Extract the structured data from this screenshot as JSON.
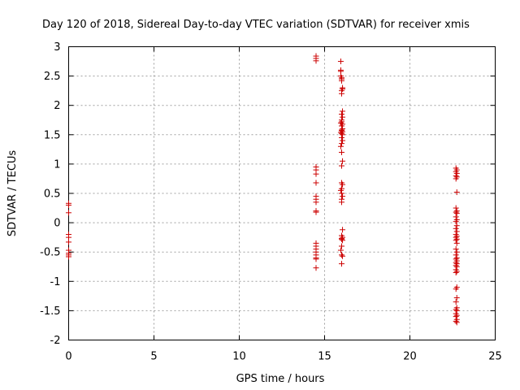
{
  "chart_data": {
    "type": "scatter",
    "title": "Day 120 of 2018, Sidereal Day-to-day VTEC variation (SDTVAR) for receiver xmis",
    "xlabel": "GPS time / hours",
    "ylabel": "SDTVAR / TECUs",
    "xlim": [
      0,
      25
    ],
    "ylim": [
      -2,
      3
    ],
    "xticks": [
      0,
      5,
      10,
      15,
      20,
      25
    ],
    "yticks": [
      -2,
      -1.5,
      -1,
      -0.5,
      0,
      0.5,
      1,
      1.5,
      2,
      2.5,
      3
    ],
    "grid": true,
    "marker": "+",
    "color": "#cc0000",
    "x": [
      0.0,
      0.0,
      0.0,
      0.0,
      0.0,
      0.0,
      0.0,
      0.0,
      0.0,
      0.0,
      14.5,
      14.5,
      14.5,
      14.5,
      14.5,
      14.5,
      14.5,
      14.5,
      14.5,
      14.5,
      14.5,
      14.5,
      14.5,
      14.5,
      14.5,
      14.5,
      14.5,
      14.5,
      14.5,
      14.5,
      15.95,
      15.95,
      15.95,
      15.95,
      16.0,
      16.0,
      16.0,
      16.05,
      16.05,
      16.0,
      16.0,
      16.05,
      16.0,
      16.05,
      16.0,
      16.0,
      15.95,
      16.05,
      16.0,
      16.05,
      16.0,
      16.0,
      16.05,
      15.95,
      16.0,
      16.05,
      16.0,
      16.05,
      16.0,
      15.95,
      16.0,
      16.05,
      16.0,
      16.0,
      16.05,
      16.0,
      15.95,
      16.0,
      16.05,
      16.0,
      16.0,
      16.05,
      16.0,
      16.05,
      16.0,
      16.0,
      16.05,
      16.0,
      15.95,
      16.0,
      16.05,
      16.0,
      22.7,
      22.75,
      22.7,
      22.75,
      22.7,
      22.75,
      22.7,
      22.75,
      22.7,
      22.75,
      22.7,
      22.75,
      22.7,
      22.75,
      22.7,
      22.75,
      22.7,
      22.75,
      22.7,
      22.75,
      22.7,
      22.75,
      22.7,
      22.75,
      22.7,
      22.75,
      22.7,
      22.75,
      22.7,
      22.75,
      22.7,
      22.75,
      22.7,
      22.75,
      22.7,
      22.75,
      22.7,
      22.75,
      22.7,
      22.75,
      22.7,
      22.75,
      22.7,
      22.75,
      22.7,
      22.75,
      22.7,
      22.75,
      22.7,
      22.75
    ],
    "y": [
      0.33,
      0.3,
      0.17,
      -0.2,
      -0.25,
      -0.33,
      -0.47,
      -0.52,
      -0.55,
      -0.58,
      2.84,
      2.8,
      2.76,
      0.95,
      0.9,
      0.83,
      0.68,
      0.45,
      0.4,
      0.35,
      0.2,
      0.18,
      -0.35,
      -0.4,
      -0.45,
      -0.5,
      -0.55,
      -0.6,
      -0.62,
      -0.77,
      2.75,
      2.6,
      2.58,
      2.5,
      2.47,
      2.45,
      2.42,
      2.3,
      2.28,
      2.25,
      2.2,
      1.9,
      1.85,
      1.8,
      1.75,
      1.72,
      1.7,
      1.68,
      1.65,
      1.6,
      1.58,
      1.57,
      1.55,
      1.54,
      1.52,
      1.5,
      1.45,
      1.4,
      1.35,
      1.3,
      1.2,
      1.05,
      0.97,
      0.68,
      0.65,
      0.58,
      0.55,
      0.5,
      0.45,
      0.4,
      0.35,
      -0.12,
      -0.22,
      -0.25,
      -0.27,
      -0.28,
      -0.3,
      -0.4,
      -0.47,
      -0.55,
      -0.57,
      -0.7,
      0.93,
      0.9,
      0.87,
      0.84,
      0.8,
      0.78,
      0.75,
      0.52,
      0.25,
      0.2,
      0.18,
      0.16,
      0.1,
      0.05,
      0.02,
      -0.05,
      -0.1,
      -0.15,
      -0.2,
      -0.23,
      -0.25,
      -0.28,
      -0.3,
      -0.35,
      -0.45,
      -0.5,
      -0.55,
      -0.6,
      -0.62,
      -0.65,
      -0.68,
      -0.7,
      -0.73,
      -0.75,
      -0.8,
      -0.83,
      -0.85,
      -1.1,
      -1.13,
      -1.28,
      -1.35,
      -1.45,
      -1.48,
      -1.5,
      -1.55,
      -1.58,
      -1.6,
      -1.65,
      -1.68,
      -1.7
    ]
  }
}
